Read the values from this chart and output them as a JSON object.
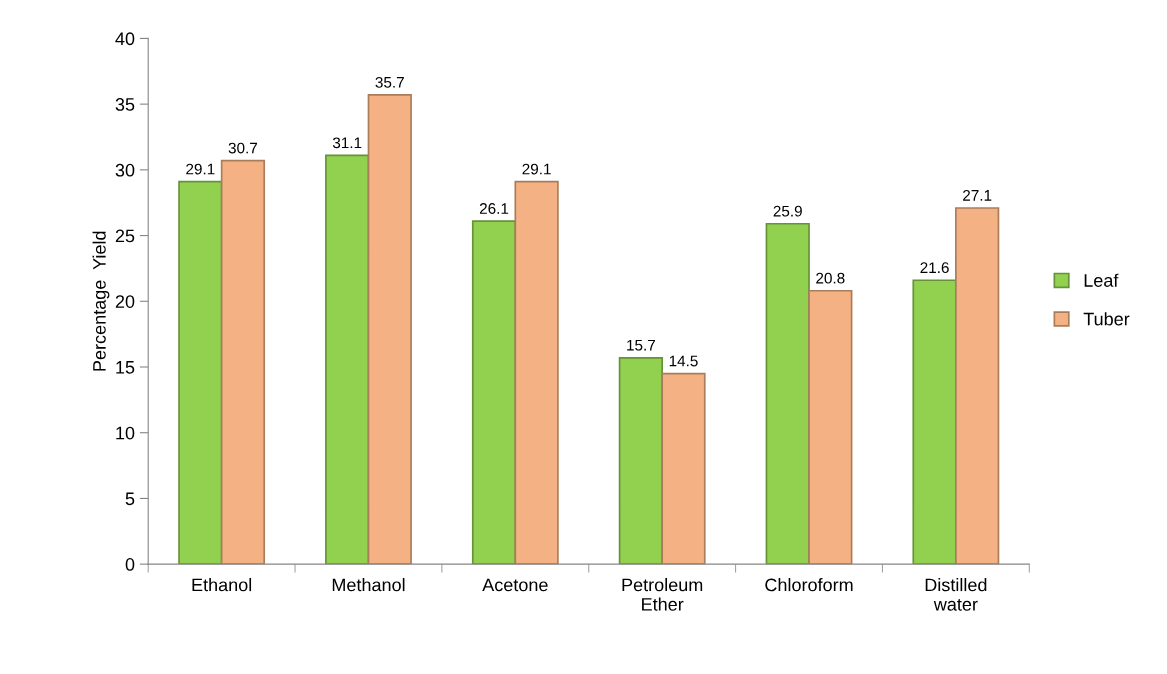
{
  "chart_data": {
    "type": "bar",
    "ylabel": "Percentage  Yield",
    "categories": [
      "Ethanol",
      "Methanol",
      "Acetone",
      "Petroleum\nEther",
      "Chloroform",
      "Distilled\nwater"
    ],
    "series": [
      {
        "name": "Leaf",
        "color": "#92d050",
        "values": [
          29.1,
          31.1,
          26.1,
          15.7,
          25.9,
          21.6
        ]
      },
      {
        "name": "Tuber",
        "color": "#f4b183",
        "values": [
          30.7,
          35.7,
          29.1,
          14.5,
          20.8,
          27.1
        ]
      }
    ],
    "ylim": [
      0,
      40
    ],
    "yticks": [
      0,
      5,
      10,
      15,
      20,
      25,
      30,
      35,
      40
    ],
    "data_labels": true,
    "legend": "right",
    "grid": false
  }
}
